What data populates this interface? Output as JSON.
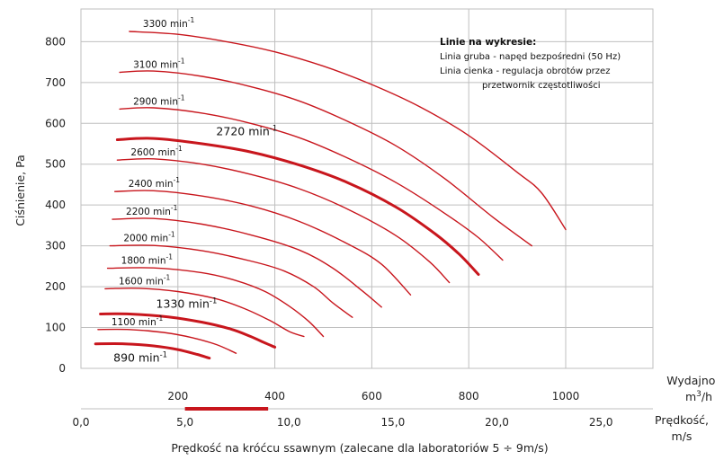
{
  "chart_data": {
    "type": "line",
    "ylabel": "Ciśnienie, Pa",
    "ylim": [
      0,
      880
    ],
    "yticks": [
      0,
      100,
      200,
      300,
      400,
      500,
      600,
      700,
      800
    ],
    "xlim": [
      0,
      1180
    ],
    "grid": true,
    "xaxis_flow": {
      "label": "Wydajność,",
      "unit_base": "m",
      "unit_sup": "3",
      "unit_rest": "/h",
      "ticks": [
        200,
        400,
        600,
        800,
        1000
      ]
    },
    "xaxis_speed": {
      "label": "Prędkość,",
      "unit": "m/s",
      "ticks": [
        "0,0",
        "5,0",
        "10,0",
        "15,0",
        "20,0",
        "25,0"
      ],
      "tick_values": [
        0,
        5,
        10,
        15,
        20,
        25
      ],
      "highlight_range": [
        5,
        9
      ]
    },
    "xlabel": "Prędkość na króćcu ssawnym (zalecane dla laboratoriów 5 ÷ 9m/s)",
    "legend": {
      "title": "Linie na wykresie:",
      "line1": "Linia gruba - napęd bezpośredni (50 Hz)",
      "line2": "Linia cienka - regulacja obrotów przez",
      "line3": "przetwornik częstotliwości"
    },
    "color": "#c8161d",
    "series": [
      {
        "label": "3300 min",
        "sup": "-1",
        "thick": false,
        "big": false,
        "points": [
          [
            100,
            825
          ],
          [
            200,
            818
          ],
          [
            300,
            800
          ],
          [
            400,
            775
          ],
          [
            500,
            740
          ],
          [
            600,
            695
          ],
          [
            700,
            640
          ],
          [
            800,
            570
          ],
          [
            900,
            480
          ],
          [
            950,
            430
          ],
          [
            1000,
            340
          ]
        ]
      },
      {
        "label": "3100 min",
        "sup": "-1",
        "thick": false,
        "big": false,
        "points": [
          [
            80,
            725
          ],
          [
            150,
            728
          ],
          [
            250,
            715
          ],
          [
            350,
            690
          ],
          [
            450,
            655
          ],
          [
            550,
            605
          ],
          [
            650,
            545
          ],
          [
            750,
            465
          ],
          [
            850,
            370
          ],
          [
            930,
            300
          ]
        ]
      },
      {
        "label": "2900 min",
        "sup": "-1",
        "thick": false,
        "big": false,
        "points": [
          [
            80,
            635
          ],
          [
            150,
            638
          ],
          [
            250,
            625
          ],
          [
            350,
            600
          ],
          [
            450,
            565
          ],
          [
            550,
            515
          ],
          [
            650,
            455
          ],
          [
            750,
            380
          ],
          [
            820,
            320
          ],
          [
            870,
            265
          ]
        ]
      },
      {
        "label": "2720 min",
        "sup": "-1",
        "thick": true,
        "big": true,
        "points": [
          [
            75,
            560
          ],
          [
            150,
            563
          ],
          [
            250,
            550
          ],
          [
            350,
            530
          ],
          [
            450,
            498
          ],
          [
            550,
            455
          ],
          [
            650,
            395
          ],
          [
            730,
            330
          ],
          [
            780,
            280
          ],
          [
            820,
            230
          ]
        ]
      },
      {
        "label": "2600 min",
        "sup": "-1",
        "thick": false,
        "big": false,
        "points": [
          [
            75,
            510
          ],
          [
            150,
            513
          ],
          [
            250,
            500
          ],
          [
            350,
            475
          ],
          [
            450,
            440
          ],
          [
            550,
            390
          ],
          [
            650,
            325
          ],
          [
            720,
            260
          ],
          [
            760,
            210
          ]
        ]
      },
      {
        "label": "2400 min",
        "sup": "-1",
        "thick": false,
        "big": false,
        "points": [
          [
            70,
            433
          ],
          [
            150,
            435
          ],
          [
            250,
            422
          ],
          [
            350,
            398
          ],
          [
            450,
            360
          ],
          [
            550,
            305
          ],
          [
            620,
            255
          ],
          [
            680,
            180
          ]
        ]
      },
      {
        "label": "2200 min",
        "sup": "-1",
        "thick": false,
        "big": false,
        "points": [
          [
            65,
            365
          ],
          [
            150,
            367
          ],
          [
            250,
            353
          ],
          [
            350,
            327
          ],
          [
            450,
            290
          ],
          [
            520,
            245
          ],
          [
            580,
            190
          ],
          [
            620,
            150
          ]
        ]
      },
      {
        "label": "2000 min",
        "sup": "-1",
        "thick": false,
        "big": false,
        "points": [
          [
            60,
            300
          ],
          [
            150,
            301
          ],
          [
            250,
            288
          ],
          [
            350,
            263
          ],
          [
            420,
            238
          ],
          [
            480,
            200
          ],
          [
            520,
            160
          ],
          [
            560,
            125
          ]
        ]
      },
      {
        "label": "1800 min",
        "sup": "-1",
        "thick": false,
        "big": false,
        "points": [
          [
            55,
            245
          ],
          [
            150,
            246
          ],
          [
            250,
            234
          ],
          [
            320,
            215
          ],
          [
            380,
            188
          ],
          [
            430,
            152
          ],
          [
            470,
            115
          ],
          [
            500,
            78
          ]
        ]
      },
      {
        "label": "1600 min",
        "sup": "-1",
        "thick": false,
        "big": false,
        "points": [
          [
            50,
            195
          ],
          [
            120,
            196
          ],
          [
            200,
            188
          ],
          [
            280,
            170
          ],
          [
            340,
            145
          ],
          [
            390,
            117
          ],
          [
            430,
            90
          ],
          [
            460,
            78
          ]
        ]
      },
      {
        "label": "1330 min",
        "sup": "-1",
        "thick": true,
        "big": true,
        "points": [
          [
            40,
            133
          ],
          [
            100,
            133
          ],
          [
            180,
            126
          ],
          [
            250,
            113
          ],
          [
            310,
            96
          ],
          [
            350,
            78
          ],
          [
            380,
            62
          ],
          [
            400,
            52
          ]
        ]
      },
      {
        "label": "1100 min",
        "sup": "-1",
        "thick": false,
        "big": false,
        "points": [
          [
            35,
            95
          ],
          [
            100,
            95
          ],
          [
            170,
            88
          ],
          [
            230,
            75
          ],
          [
            280,
            58
          ],
          [
            320,
            37
          ]
        ]
      },
      {
        "label": "890 min",
        "sup": "-1",
        "thick": true,
        "big": true,
        "points": [
          [
            30,
            60
          ],
          [
            90,
            60
          ],
          [
            150,
            55
          ],
          [
            200,
            46
          ],
          [
            240,
            34
          ],
          [
            265,
            25
          ]
        ]
      }
    ]
  }
}
